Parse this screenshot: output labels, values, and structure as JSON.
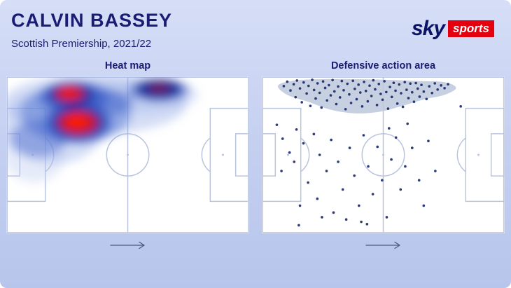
{
  "header": {
    "title": "CALVIN BASSEY",
    "subtitle": "Scottish Premiership, 2021/22"
  },
  "logo": {
    "sky": "sky",
    "sports": "sports"
  },
  "panels": [
    {
      "title": "Heat map"
    },
    {
      "title": "Defensive action area"
    }
  ],
  "colors": {
    "title_navy": "#1b1b74",
    "pitch_line": "#b9c4dd",
    "dot": "#1b2a6b",
    "hull": "#bfc9dd",
    "logo_red": "#e4000f",
    "logo_navy": "#0b1464",
    "arrow": "#4a5a80"
  },
  "chart_data": [
    {
      "type": "heatmap",
      "title": "Heat map",
      "pitch": {
        "length_units": 105,
        "width_units": 68
      },
      "attack_direction": "left-to-right",
      "legend": "red = highest activity, blue = moderate activity, concentrated in own-half left flank (left-back zone)",
      "blobs": [
        {
          "x": 38,
          "y": 12,
          "rx": 40,
          "ry": 13,
          "color": "#93aae6",
          "opacity": 0.4
        },
        {
          "x": 20,
          "y": 22,
          "rx": 22,
          "ry": 16,
          "color": "#93aae6",
          "opacity": 0.4
        },
        {
          "x": 12,
          "y": 32,
          "rx": 14,
          "ry": 14,
          "color": "#b6c5ef",
          "opacity": 0.35
        },
        {
          "x": 55,
          "y": 8,
          "rx": 28,
          "ry": 8,
          "color": "#93aae6",
          "opacity": 0.3
        },
        {
          "x": 30,
          "y": 16,
          "rx": 24,
          "ry": 13,
          "color": "#5577d4",
          "opacity": 0.5
        },
        {
          "x": 29,
          "y": 9,
          "rx": 15,
          "ry": 7,
          "color": "#2b4ec2",
          "opacity": 0.55
        },
        {
          "x": 31,
          "y": 20,
          "rx": 15,
          "ry": 9,
          "color": "#2b4ec2",
          "opacity": 0.55
        },
        {
          "x": 66,
          "y": 6,
          "rx": 13,
          "ry": 5,
          "color": "#2b4ec2",
          "opacity": 0.55
        },
        {
          "x": 14,
          "y": 27,
          "rx": 12,
          "ry": 8,
          "color": "#3a5cc8",
          "opacity": 0.4
        },
        {
          "x": 45,
          "y": 11,
          "rx": 10,
          "ry": 5.5,
          "color": "#2b4ec2",
          "opacity": 0.35
        },
        {
          "x": 28,
          "y": 8,
          "rx": 10,
          "ry": 5,
          "color": "#121f96",
          "opacity": 0.75
        },
        {
          "x": 31,
          "y": 20,
          "rx": 11.5,
          "ry": 7,
          "color": "#121f96",
          "opacity": 0.75
        },
        {
          "x": 66,
          "y": 5.5,
          "rx": 9.5,
          "ry": 4,
          "color": "#0e1a86",
          "opacity": 0.85
        },
        {
          "x": 27.5,
          "y": 7.5,
          "rx": 6.3,
          "ry": 3.3,
          "color": "#d51212",
          "opacity": 0.9
        },
        {
          "x": 31,
          "y": 20,
          "rx": 8.5,
          "ry": 5,
          "color": "#d51212",
          "opacity": 0.92
        },
        {
          "x": 66,
          "y": 5.2,
          "rx": 4.2,
          "ry": 2,
          "color": "#b31a30",
          "opacity": 0.55
        },
        {
          "x": 27,
          "y": 7.2,
          "rx": 3.4,
          "ry": 1.9,
          "color": "#ff1e05",
          "opacity": 0.92
        },
        {
          "x": 30.5,
          "y": 19.5,
          "rx": 4.8,
          "ry": 3,
          "color": "#ff1e05",
          "opacity": 0.95
        }
      ]
    },
    {
      "type": "scatter",
      "title": "Defensive action area",
      "pitch": {
        "length_units": 105,
        "width_units": 68
      },
      "attack_direction": "left-to-right",
      "point_radius": 0.55,
      "hull_points": [
        [
          7,
          4
        ],
        [
          14,
          1.8
        ],
        [
          26,
          1.2
        ],
        [
          40,
          1.2
        ],
        [
          55,
          1.5
        ],
        [
          68,
          2
        ],
        [
          79,
          2.5
        ],
        [
          84,
          5
        ],
        [
          79,
          8
        ],
        [
          70,
          10
        ],
        [
          60,
          13
        ],
        [
          50,
          15.5
        ],
        [
          40,
          16
        ],
        [
          30,
          14.5
        ],
        [
          20,
          11
        ],
        [
          11,
          8
        ]
      ],
      "points": [
        [
          9.5,
          4.2
        ],
        [
          11,
          2.3
        ],
        [
          12.4,
          6.1
        ],
        [
          13.8,
          3.4
        ],
        [
          14.6,
          9
        ],
        [
          15.2,
          1.8
        ],
        [
          16.5,
          5.2
        ],
        [
          17.3,
          11.2
        ],
        [
          18.1,
          2.6
        ],
        [
          19.4,
          7.4
        ],
        [
          20.2,
          4.1
        ],
        [
          21,
          12.8
        ],
        [
          21.8,
          1.5
        ],
        [
          22.6,
          5.9
        ],
        [
          23.3,
          9.6
        ],
        [
          24.1,
          3
        ],
        [
          25,
          7.1
        ],
        [
          25.8,
          13.5
        ],
        [
          26.5,
          2.2
        ],
        [
          27.4,
          5
        ],
        [
          28.2,
          10.4
        ],
        [
          29,
          3.8
        ],
        [
          29.8,
          8.2
        ],
        [
          30.6,
          1.6
        ],
        [
          31.4,
          6.5
        ],
        [
          32.2,
          12
        ],
        [
          33,
          4.4
        ],
        [
          33.8,
          9.1
        ],
        [
          34.6,
          2
        ],
        [
          35.4,
          6
        ],
        [
          36.2,
          14.2
        ],
        [
          37,
          3.2
        ],
        [
          37.8,
          7.8
        ],
        [
          38.6,
          11.5
        ],
        [
          39.4,
          1.9
        ],
        [
          40.2,
          5.4
        ],
        [
          41,
          9.9
        ],
        [
          41.8,
          3.6
        ],
        [
          42.6,
          7
        ],
        [
          43.4,
          13
        ],
        [
          44.2,
          2.4
        ],
        [
          45,
          6.3
        ],
        [
          45.8,
          10.8
        ],
        [
          46.6,
          4
        ],
        [
          47.4,
          8.5
        ],
        [
          48.2,
          1.7
        ],
        [
          49,
          5.6
        ],
        [
          49.8,
          12.4
        ],
        [
          50.6,
          3.3
        ],
        [
          51.4,
          7.6
        ],
        [
          52.2,
          10.1
        ],
        [
          53,
          2.1
        ],
        [
          53.8,
          6.8
        ],
        [
          54.6,
          14
        ],
        [
          55.4,
          4.6
        ],
        [
          56.2,
          8.9
        ],
        [
          57,
          2.8
        ],
        [
          57.8,
          6.2
        ],
        [
          58.6,
          11.8
        ],
        [
          59.4,
          3.5
        ],
        [
          60.2,
          7.3
        ],
        [
          61,
          13.2
        ],
        [
          61.8,
          2.5
        ],
        [
          62.6,
          5.8
        ],
        [
          63.4,
          9.4
        ],
        [
          64.2,
          3.1
        ],
        [
          65,
          6.9
        ],
        [
          65.8,
          11
        ],
        [
          66.6,
          2.9
        ],
        [
          67.4,
          5.3
        ],
        [
          68.2,
          8.8
        ],
        [
          69,
          3.7
        ],
        [
          70,
          6.6
        ],
        [
          71.2,
          9.8
        ],
        [
          72.4,
          4.3
        ],
        [
          73.6,
          7.2
        ],
        [
          74.8,
          3
        ],
        [
          76,
          5.7
        ],
        [
          77.5,
          3.9
        ],
        [
          79,
          5.1
        ],
        [
          80.5,
          3.4
        ],
        [
          6.5,
          21
        ],
        [
          9,
          27
        ],
        [
          12,
          33
        ],
        [
          8.5,
          41
        ],
        [
          15,
          23
        ],
        [
          18,
          29
        ],
        [
          14,
          37
        ],
        [
          20,
          46
        ],
        [
          22.5,
          25
        ],
        [
          25,
          34
        ],
        [
          28,
          41
        ],
        [
          24,
          53
        ],
        [
          30,
          27.5
        ],
        [
          33,
          37
        ],
        [
          35,
          49
        ],
        [
          31,
          59
        ],
        [
          38,
          31
        ],
        [
          40,
          43
        ],
        [
          42,
          56
        ],
        [
          44,
          25.5
        ],
        [
          46,
          39
        ],
        [
          48,
          51
        ],
        [
          50,
          30.5
        ],
        [
          52,
          45
        ],
        [
          54,
          61
        ],
        [
          56,
          36
        ],
        [
          58,
          26.5
        ],
        [
          60,
          49
        ],
        [
          62,
          39
        ],
        [
          65,
          31
        ],
        [
          68,
          45
        ],
        [
          70,
          56
        ],
        [
          45.5,
          64
        ],
        [
          36.5,
          62
        ],
        [
          26,
          61
        ],
        [
          55,
          22.5
        ],
        [
          63,
          20.5
        ],
        [
          72,
          28
        ],
        [
          75,
          41
        ],
        [
          16.5,
          56
        ],
        [
          86,
          13
        ],
        [
          16,
          64.5
        ],
        [
          43,
          63
        ]
      ]
    }
  ]
}
